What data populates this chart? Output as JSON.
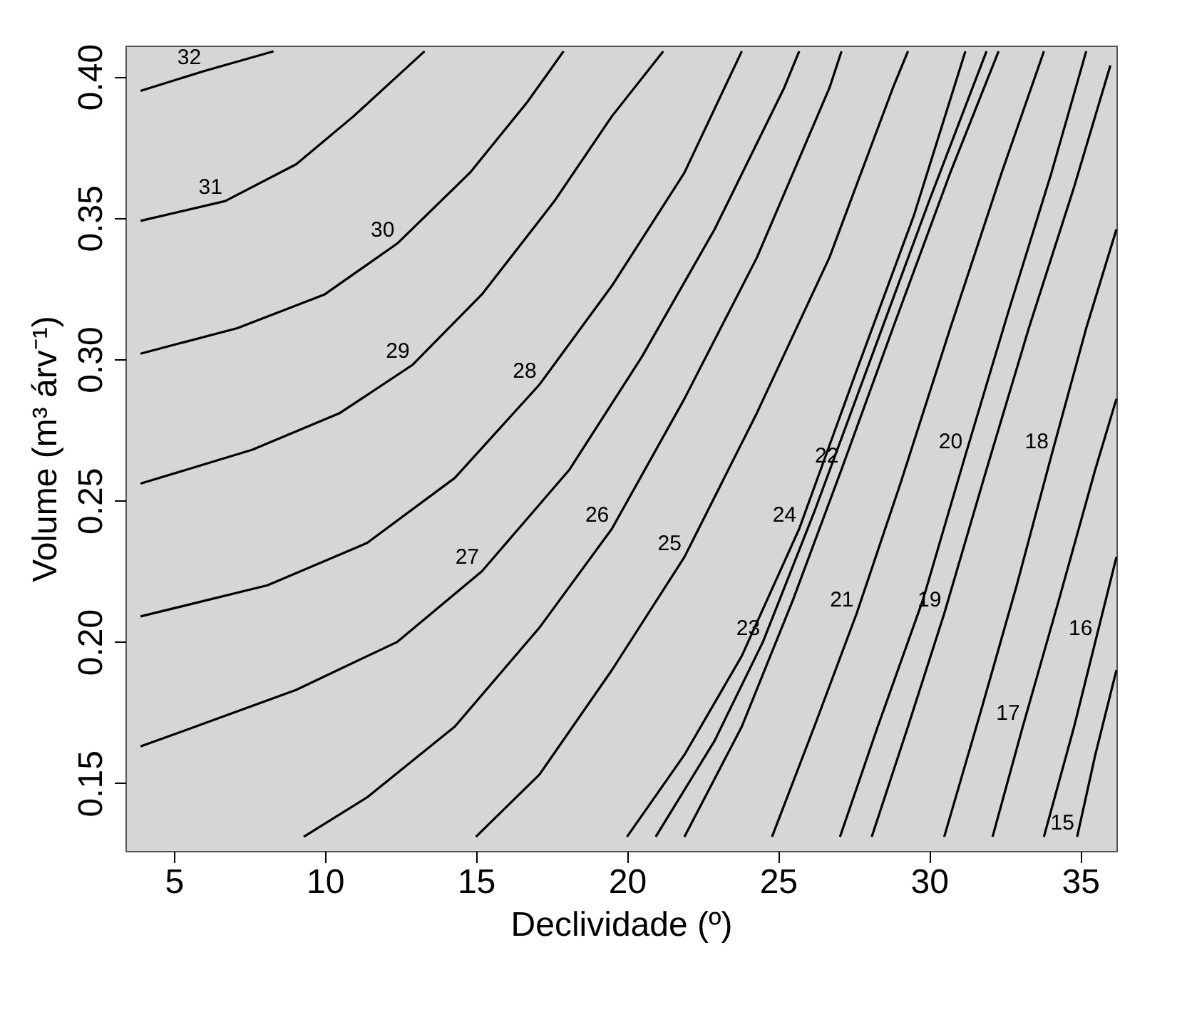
{
  "chart_data": {
    "type": "line",
    "xlabel": "Declividade (º)",
    "ylabel": "Volume (m³ árv⁻¹)",
    "xlim": [
      3.4,
      36.2
    ],
    "ylim": [
      0.126,
      0.411
    ],
    "xticks": [
      5,
      10,
      15,
      20,
      25,
      30,
      35
    ],
    "yticks": [
      {
        "value": 0.15,
        "label": "0.15"
      },
      {
        "value": 0.2,
        "label": "0.20"
      },
      {
        "value": 0.25,
        "label": "0.25"
      },
      {
        "value": 0.3,
        "label": "0.30"
      },
      {
        "value": 0.35,
        "label": "0.35"
      },
      {
        "value": 0.4,
        "label": "0.40"
      }
    ],
    "grid": false,
    "series": [
      {
        "name": "32",
        "color": "#000000",
        "x": [
          3.9,
          6,
          8.3
        ],
        "values": [
          0.395,
          0.402,
          0.409
        ]
      },
      {
        "name": "31",
        "color": "#000000",
        "x": [
          3.9,
          6.7,
          9.05,
          10.95,
          13.3
        ],
        "values": [
          0.349,
          0.356,
          0.369,
          0.386,
          0.409
        ]
      },
      {
        "name": "30",
        "color": "#000000",
        "x": [
          3.9,
          7.1,
          10,
          12.4,
          14.8,
          16.7,
          17.9
        ],
        "values": [
          0.302,
          0.311,
          0.323,
          0.341,
          0.366,
          0.391,
          0.409
        ]
      },
      {
        "name": "29",
        "color": "#000000",
        "x": [
          3.9,
          7.6,
          10.5,
          12.9,
          15.2,
          17.6,
          19.5,
          21.2
        ],
        "values": [
          0.256,
          0.268,
          0.281,
          0.298,
          0.323,
          0.356,
          0.386,
          0.409
        ]
      },
      {
        "name": "28",
        "color": "#000000",
        "x": [
          3.9,
          8.1,
          11.4,
          14.3,
          17.1,
          19.5,
          21.9,
          23.8
        ],
        "values": [
          0.209,
          0.22,
          0.235,
          0.258,
          0.291,
          0.326,
          0.366,
          0.409
        ]
      },
      {
        "name": "27",
        "color": "#000000",
        "x": [
          3.9,
          5.2,
          9.05,
          12.4,
          15.2,
          18.1,
          20.5,
          22.9,
          25.2,
          25.7
        ],
        "values": [
          0.163,
          0.168,
          0.183,
          0.2,
          0.225,
          0.261,
          0.301,
          0.346,
          0.396,
          0.409
        ]
      },
      {
        "name": "26",
        "color": "#000000",
        "x": [
          9.3,
          11.4,
          14.3,
          17.1,
          19.5,
          21.9,
          24.3,
          26.7,
          27.1
        ],
        "values": [
          0.131,
          0.145,
          0.17,
          0.205,
          0.24,
          0.286,
          0.336,
          0.396,
          0.409
        ]
      },
      {
        "name": "25",
        "color": "#000000",
        "x": [
          15,
          17.1,
          19.5,
          21.9,
          24.3,
          26.7,
          28.8,
          29.3
        ],
        "values": [
          0.131,
          0.153,
          0.19,
          0.23,
          0.281,
          0.336,
          0.396,
          0.409
        ]
      },
      {
        "name": "24",
        "color": "#000000",
        "x": [
          20,
          21.9,
          23.8,
          25.7,
          27.6,
          29.5,
          31.2
        ],
        "values": [
          0.131,
          0.16,
          0.195,
          0.24,
          0.296,
          0.351,
          0.409
        ]
      },
      {
        "name": "23",
        "color": "#000000",
        "x": [
          20.95,
          22.9,
          24.5,
          26.2,
          28.1,
          30,
          31.9
        ],
        "values": [
          0.131,
          0.165,
          0.2,
          0.246,
          0.301,
          0.356,
          0.409
        ]
      },
      {
        "name": "22",
        "color": "#000000",
        "x": [
          21.9,
          23.8,
          25.5,
          27.1,
          28.8,
          30.7,
          32.3
        ],
        "values": [
          0.131,
          0.17,
          0.215,
          0.261,
          0.311,
          0.366,
          0.409
        ]
      },
      {
        "name": "21",
        "color": "#000000",
        "x": [
          24.8,
          26.2,
          27.6,
          29.05,
          30.7,
          32.4,
          33.8
        ],
        "values": [
          0.131,
          0.17,
          0.21,
          0.256,
          0.311,
          0.366,
          0.409
        ]
      },
      {
        "name": "20",
        "color": "#000000",
        "x": [
          27.05,
          28.3,
          29.8,
          31.2,
          32.6,
          34.05,
          35.2
        ],
        "values": [
          0.131,
          0.17,
          0.215,
          0.266,
          0.316,
          0.366,
          0.409
        ]
      },
      {
        "name": "19",
        "color": "#000000",
        "x": [
          28.1,
          29.3,
          30.5,
          31.9,
          33.3,
          34.8,
          36
        ],
        "values": [
          0.131,
          0.17,
          0.21,
          0.261,
          0.311,
          0.361,
          0.404
        ]
      },
      {
        "name": "18",
        "color": "#000000",
        "x": [
          30.5,
          31.7,
          32.9,
          34.05,
          35.2,
          36.2
        ],
        "values": [
          0.131,
          0.175,
          0.22,
          0.266,
          0.311,
          0.346
        ]
      },
      {
        "name": "17",
        "color": "#000000",
        "x": [
          32.1,
          33.1,
          34.3,
          35.5,
          36.2
        ],
        "values": [
          0.131,
          0.17,
          0.215,
          0.261,
          0.286
        ]
      },
      {
        "name": "16",
        "color": "#000000",
        "x": [
          33.8,
          34.8,
          35.5,
          36.2
        ],
        "values": [
          0.131,
          0.17,
          0.2,
          0.23
        ]
      },
      {
        "name": "15",
        "color": "#000000",
        "x": [
          34.9,
          35.5,
          36.2
        ],
        "values": [
          0.131,
          0.16,
          0.19
        ]
      }
    ]
  }
}
